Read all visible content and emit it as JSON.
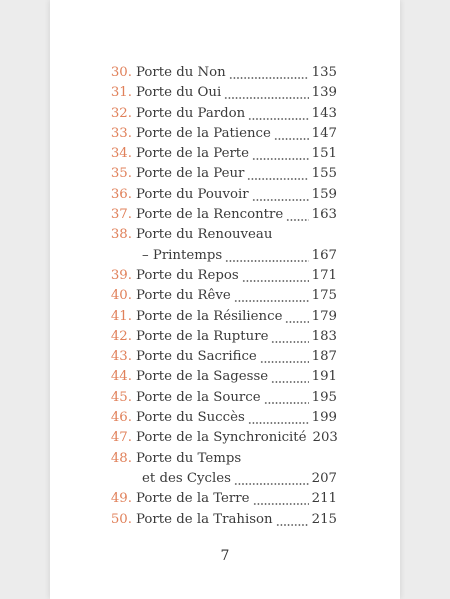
{
  "toc": {
    "entries": [
      {
        "number": "30.",
        "lines": [
          "Porte du Non"
        ],
        "page": 135
      },
      {
        "number": "31.",
        "lines": [
          "Porte du Oui"
        ],
        "page": 139
      },
      {
        "number": "32.",
        "lines": [
          "Porte du Pardon"
        ],
        "page": 143
      },
      {
        "number": "33.",
        "lines": [
          "Porte de la Patience"
        ],
        "page": 147
      },
      {
        "number": "34.",
        "lines": [
          "Porte de la Perte"
        ],
        "page": 151
      },
      {
        "number": "35.",
        "lines": [
          "Porte de la Peur"
        ],
        "page": 155
      },
      {
        "number": "36.",
        "lines": [
          "Porte du Pouvoir"
        ],
        "page": 159
      },
      {
        "number": "37.",
        "lines": [
          "Porte de la Rencontre"
        ],
        "page": 163
      },
      {
        "number": "38.",
        "lines": [
          "Porte du Renouveau",
          "– Printemps"
        ],
        "page": 167
      },
      {
        "number": "39.",
        "lines": [
          "Porte du Repos"
        ],
        "page": 171
      },
      {
        "number": "40.",
        "lines": [
          "Porte du Rêve"
        ],
        "page": 175
      },
      {
        "number": "41.",
        "lines": [
          "Porte de la Résilience"
        ],
        "page": 179
      },
      {
        "number": "42.",
        "lines": [
          "Porte de la Rupture"
        ],
        "page": 183
      },
      {
        "number": "43.",
        "lines": [
          "Porte du Sacrifice"
        ],
        "page": 187
      },
      {
        "number": "44.",
        "lines": [
          "Porte de la Sagesse"
        ],
        "page": 191
      },
      {
        "number": "45.",
        "lines": [
          "Porte de la Source"
        ],
        "page": 195
      },
      {
        "number": "46.",
        "lines": [
          "Porte du Succès"
        ],
        "page": 199
      },
      {
        "number": "47.",
        "lines": [
          "Porte de la Synchronicité"
        ],
        "page": 203
      },
      {
        "number": "48.",
        "lines": [
          "Porte du Temps",
          "et des Cycles"
        ],
        "page": 207
      },
      {
        "number": "49.",
        "lines": [
          "Porte de la Terre"
        ],
        "page": 211
      },
      {
        "number": "50.",
        "lines": [
          "Porte de la Trahison"
        ],
        "page": 215
      }
    ]
  },
  "footer": {
    "page_number": "7"
  }
}
